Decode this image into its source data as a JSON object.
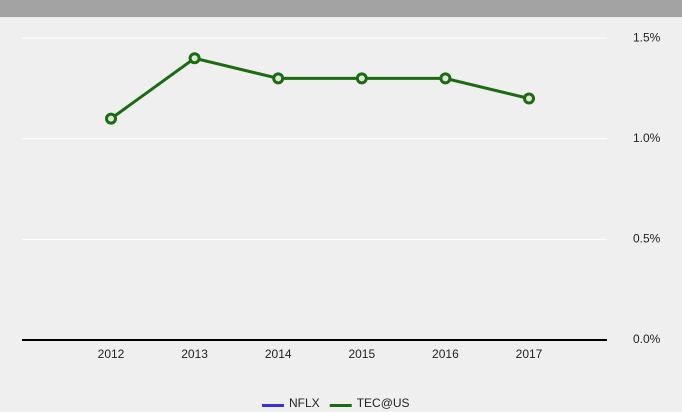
{
  "chart_data": {
    "type": "line",
    "categories": [
      "2012",
      "2013",
      "2014",
      "2015",
      "2016",
      "2017"
    ],
    "series": [
      {
        "name": "NFLX",
        "color": "#3b2fe0",
        "values": [
          null,
          null,
          null,
          null,
          null,
          null
        ]
      },
      {
        "name": "TEC@US",
        "color": "#1b6b12",
        "values": [
          1.1,
          1.4,
          1.3,
          1.3,
          1.3,
          1.2
        ]
      }
    ],
    "ylim": [
      0,
      1.6
    ],
    "yticks": [
      {
        "value": 0,
        "label": "0.0%"
      },
      {
        "value": 0.5,
        "label": "0.5%"
      },
      {
        "value": 1.0,
        "label": "1.0%"
      },
      {
        "value": 1.5,
        "label": "1.5%"
      }
    ],
    "grid": true,
    "legend": "bottom"
  }
}
